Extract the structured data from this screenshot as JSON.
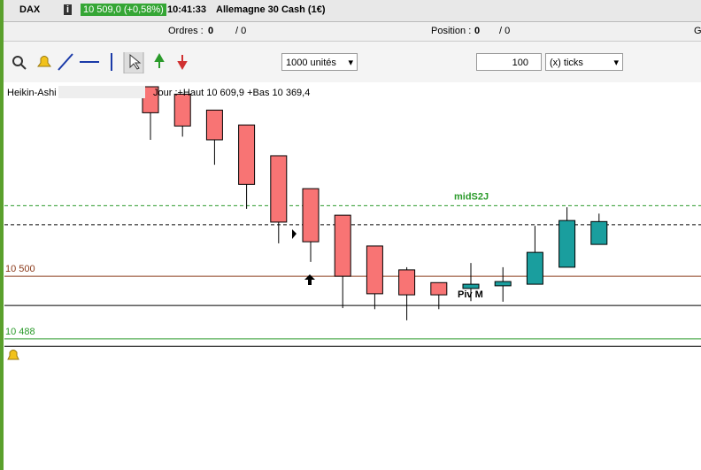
{
  "header": {
    "symbol": "DAX",
    "price": "10 509,0 (+0,58%)",
    "time": "10:41:33",
    "instrument": "Allemagne 30 Cash (1€)"
  },
  "orders_bar": {
    "orders_label": "Ordres :",
    "orders_count": "0",
    "orders_total": "/ 0",
    "position_label": "Position :",
    "position_count": "0",
    "position_total": "/ 0",
    "right_cut": "G"
  },
  "toolbar": {
    "quantity": "1000 unités",
    "ticks_value": "100",
    "ticks_unit": "(x) ticks"
  },
  "legend": {
    "indicator": "Heikin-Ashi",
    "day_range": "Jour :+Haut 10 609,9 +Bas 10 369,4"
  },
  "chart_data": {
    "type": "candlestick",
    "ylim": [
      10464,
      10535.7
    ],
    "up_color": "#1a9e9e",
    "down_color": "#f87474",
    "candles": [
      {
        "open": 10535.7,
        "high": 10535.7,
        "low": 10525.7,
        "close": 10530.8
      },
      {
        "open": 10534.3,
        "high": 10534.3,
        "low": 10526.3,
        "close": 10528.3
      },
      {
        "open": 10531.3,
        "high": 10531.3,
        "low": 10521,
        "close": 10525.7
      },
      {
        "open": 10528.5,
        "high": 10528.5,
        "low": 10512.7,
        "close": 10517.3
      },
      {
        "open": 10522.7,
        "high": 10522.7,
        "low": 10506.2,
        "close": 10510.2
      },
      {
        "open": 10516.5,
        "high": 10516.5,
        "low": 10502.7,
        "close": 10506.5
      },
      {
        "open": 10511.5,
        "high": 10511.5,
        "low": 10494,
        "close": 10500
      },
      {
        "open": 10505.7,
        "high": 10505.7,
        "low": 10493.8,
        "close": 10496.7
      },
      {
        "open": 10501.2,
        "high": 10501.7,
        "low": 10491.7,
        "close": 10496.5
      },
      {
        "open": 10498.8,
        "high": 10498.8,
        "low": 10493.8,
        "close": 10496.5
      },
      {
        "open": 10497.7,
        "high": 10502.5,
        "low": 10495.3,
        "close": 10498.5
      },
      {
        "open": 10498.2,
        "high": 10501.7,
        "low": 10495.2,
        "close": 10499
      },
      {
        "open": 10498.5,
        "high": 10509.5,
        "low": 10498.5,
        "close": 10504.5
      },
      {
        "open": 10501.7,
        "high": 10513,
        "low": 10501.7,
        "close": 10510.5
      },
      {
        "open": 10506,
        "high": 10511.8,
        "low": 10506,
        "close": 10510.3
      }
    ],
    "levels": [
      {
        "value": 10513.3,
        "label": "midS2J",
        "color": "#2a9a2a",
        "dashed": true
      },
      {
        "value": 10509.7,
        "color": "#000000",
        "dashed": true
      },
      {
        "value": 10500,
        "label": "10 500",
        "color": "#8b3a1a",
        "dashed": false
      },
      {
        "value": 10494.5,
        "label": "Piv M",
        "color": "#000000",
        "dashed": false
      },
      {
        "value": 10488.2,
        "label": "10 488",
        "color": "#2a9a2a",
        "dashed": false
      },
      {
        "value": 10486.8,
        "color": "#000000",
        "dashed": false
      }
    ]
  }
}
